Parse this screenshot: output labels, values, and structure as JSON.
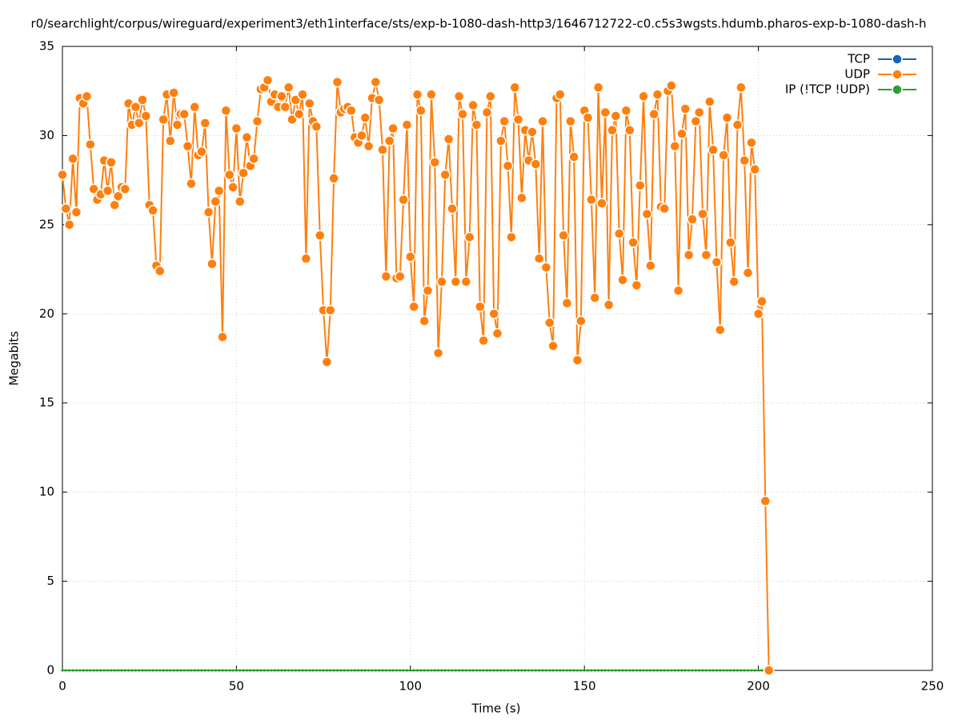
{
  "chart_data": {
    "type": "line",
    "title": "r0/searchlight/corpus/wireguard/experiment3/eth1interface/sts/exp-b-1080-dash-http3/1646712722-c0.c5s3wgsts.hdumb.pharos-exp-b-1080-dash-h",
    "x_label": "Time (s)",
    "y_label": "Megabits",
    "xlim": [
      0,
      250
    ],
    "xticks": [
      0,
      50,
      100,
      150,
      200,
      250
    ],
    "ylim": [
      0,
      35
    ],
    "yticks": [
      0,
      5,
      10,
      15,
      20,
      25,
      30,
      35
    ],
    "grid": true,
    "legend": "top-right",
    "x": [
      0,
      1,
      2,
      3,
      4,
      5,
      6,
      7,
      8,
      9,
      10,
      11,
      12,
      13,
      14,
      15,
      16,
      17,
      18,
      19,
      20,
      21,
      22,
      23,
      24,
      25,
      26,
      27,
      28,
      29,
      30,
      31,
      32,
      33,
      34,
      35,
      36,
      37,
      38,
      39,
      40,
      41,
      42,
      43,
      44,
      45,
      46,
      47,
      48,
      49,
      50,
      51,
      52,
      53,
      54,
      55,
      56,
      57,
      58,
      59,
      60,
      61,
      62,
      63,
      64,
      65,
      66,
      67,
      68,
      69,
      70,
      71,
      72,
      73,
      74,
      75,
      76,
      77,
      78,
      79,
      80,
      81,
      82,
      83,
      84,
      85,
      86,
      87,
      88,
      89,
      90,
      91,
      92,
      93,
      94,
      95,
      96,
      97,
      98,
      99,
      100,
      101,
      102,
      103,
      104,
      105,
      106,
      107,
      108,
      109,
      110,
      111,
      112,
      113,
      114,
      115,
      116,
      117,
      118,
      119,
      120,
      121,
      122,
      123,
      124,
      125,
      126,
      127,
      128,
      129,
      130,
      131,
      132,
      133,
      134,
      135,
      136,
      137,
      138,
      139,
      140,
      141,
      142,
      143,
      144,
      145,
      146,
      147,
      148,
      149,
      150,
      151,
      152,
      153,
      154,
      155,
      156,
      157,
      158,
      159,
      160,
      161,
      162,
      163,
      164,
      165,
      166,
      167,
      168,
      169,
      170,
      171,
      172,
      173,
      174,
      175,
      176,
      177,
      178,
      179,
      180,
      181,
      182,
      183,
      184,
      185,
      186,
      187,
      188,
      189,
      190,
      191,
      192,
      193,
      194,
      195,
      196,
      197,
      198,
      199,
      200,
      201,
      202,
      203
    ],
    "series": [
      {
        "name": "TCP",
        "color": "#1565b8",
        "values": [
          0,
          0,
          0,
          0,
          0,
          0,
          0,
          0,
          0,
          0,
          0,
          0,
          0,
          0,
          0,
          0,
          0,
          0,
          0,
          0,
          0,
          0,
          0,
          0,
          0,
          0,
          0,
          0,
          0,
          0,
          0,
          0,
          0,
          0,
          0,
          0,
          0,
          0,
          0,
          0,
          0,
          0,
          0,
          0,
          0,
          0,
          0,
          0,
          0,
          0,
          0,
          0,
          0,
          0,
          0,
          0,
          0,
          0,
          0,
          0,
          0,
          0,
          0,
          0,
          0,
          0,
          0,
          0,
          0,
          0,
          0,
          0,
          0,
          0,
          0,
          0,
          0,
          0,
          0,
          0,
          0,
          0,
          0,
          0,
          0,
          0,
          0,
          0,
          0,
          0,
          0,
          0,
          0,
          0,
          0,
          0,
          0,
          0,
          0,
          0,
          0,
          0,
          0,
          0,
          0,
          0,
          0,
          0,
          0,
          0,
          0,
          0,
          0,
          0,
          0,
          0,
          0,
          0,
          0,
          0,
          0,
          0,
          0,
          0,
          0,
          0,
          0,
          0,
          0,
          0,
          0,
          0,
          0,
          0,
          0,
          0,
          0,
          0,
          0,
          0,
          0,
          0,
          0,
          0,
          0,
          0,
          0,
          0,
          0,
          0,
          0,
          0,
          0,
          0,
          0,
          0,
          0,
          0,
          0,
          0,
          0,
          0,
          0,
          0,
          0,
          0,
          0,
          0,
          0,
          0,
          0,
          0,
          0,
          0,
          0,
          0,
          0,
          0,
          0,
          0,
          0,
          0,
          0,
          0,
          0,
          0,
          0,
          0,
          0,
          0,
          0,
          0,
          0,
          0,
          0,
          0,
          0,
          0,
          0,
          0,
          0,
          0,
          0,
          0
        ]
      },
      {
        "name": "UDP",
        "color": "#ff7f0e",
        "values": [
          27.8,
          25.9,
          25.0,
          28.7,
          25.7,
          32.1,
          31.8,
          32.2,
          29.5,
          27.0,
          26.4,
          26.7,
          28.6,
          26.9,
          28.5,
          26.1,
          26.6,
          27.1,
          27.0,
          31.8,
          30.6,
          31.6,
          30.7,
          32.0,
          31.1,
          26.1,
          25.8,
          22.7,
          22.4,
          30.9,
          32.3,
          29.7,
          32.4,
          30.6,
          31.2,
          31.2,
          29.4,
          27.3,
          31.6,
          28.9,
          29.1,
          30.7,
          25.7,
          22.8,
          26.3,
          26.9,
          18.7,
          31.4,
          27.8,
          27.1,
          30.4,
          26.3,
          27.9,
          29.9,
          28.3,
          28.7,
          30.8,
          32.6,
          32.7,
          33.1,
          31.9,
          32.3,
          31.6,
          32.2,
          31.6,
          32.7,
          30.9,
          32.0,
          31.2,
          32.3,
          23.1,
          31.8,
          30.8,
          30.5,
          24.4,
          20.2,
          17.3,
          20.2,
          27.6,
          33.0,
          31.3,
          31.5,
          31.6,
          31.4,
          29.9,
          29.6,
          30.0,
          31.0,
          29.4,
          32.1,
          33.0,
          32.0,
          29.2,
          22.1,
          29.7,
          30.4,
          22.0,
          22.1,
          26.4,
          30.6,
          23.2,
          20.4,
          32.3,
          31.4,
          19.6,
          21.3,
          32.3,
          28.5,
          17.8,
          21.8,
          27.8,
          29.8,
          25.9,
          21.8,
          32.2,
          31.2,
          21.8,
          24.3,
          31.7,
          30.6,
          20.4,
          18.5,
          31.3,
          32.2,
          20.0,
          18.9,
          29.7,
          30.8,
          28.3,
          24.3,
          32.7,
          30.9,
          26.5,
          30.3,
          28.6,
          30.2,
          28.4,
          23.1,
          30.8,
          22.6,
          19.5,
          18.2,
          32.1,
          32.3,
          24.4,
          20.6,
          30.8,
          28.8,
          17.4,
          19.6,
          31.4,
          31.0,
          26.4,
          20.9,
          32.7,
          26.2,
          31.3,
          20.5,
          30.3,
          31.1,
          24.5,
          21.9,
          31.4,
          30.3,
          24.0,
          21.6,
          27.2,
          32.2,
          25.6,
          22.7,
          31.2,
          32.3,
          26.0,
          25.9,
          32.5,
          32.8,
          29.4,
          21.3,
          30.1,
          31.5,
          23.3,
          25.3,
          30.8,
          31.3,
          25.6,
          23.3,
          31.9,
          29.2,
          22.9,
          19.1,
          28.9,
          31.0,
          24.0,
          21.8,
          30.6,
          32.7,
          28.6,
          22.3,
          29.6,
          28.1,
          20.0,
          20.7,
          9.5,
          0
        ]
      },
      {
        "name": "IP (!TCP  !UDP)",
        "color": "#2ca02c",
        "values": [
          0,
          0,
          0,
          0,
          0,
          0,
          0,
          0,
          0,
          0,
          0,
          0,
          0,
          0,
          0,
          0,
          0,
          0,
          0,
          0,
          0,
          0,
          0,
          0,
          0,
          0,
          0,
          0,
          0,
          0,
          0,
          0,
          0,
          0,
          0,
          0,
          0,
          0,
          0,
          0,
          0,
          0,
          0,
          0,
          0,
          0,
          0,
          0,
          0,
          0,
          0,
          0,
          0,
          0,
          0,
          0,
          0,
          0,
          0,
          0,
          0,
          0,
          0,
          0,
          0,
          0,
          0,
          0,
          0,
          0,
          0,
          0,
          0,
          0,
          0,
          0,
          0,
          0,
          0,
          0,
          0,
          0,
          0,
          0,
          0,
          0,
          0,
          0,
          0,
          0,
          0,
          0,
          0,
          0,
          0,
          0,
          0,
          0,
          0,
          0,
          0,
          0,
          0,
          0,
          0,
          0,
          0,
          0,
          0,
          0,
          0,
          0,
          0,
          0,
          0,
          0,
          0,
          0,
          0,
          0,
          0,
          0,
          0,
          0,
          0,
          0,
          0,
          0,
          0,
          0,
          0,
          0,
          0,
          0,
          0,
          0,
          0,
          0,
          0,
          0,
          0,
          0,
          0,
          0,
          0,
          0,
          0,
          0,
          0,
          0,
          0,
          0,
          0,
          0,
          0,
          0,
          0,
          0,
          0,
          0,
          0,
          0,
          0,
          0,
          0,
          0,
          0,
          0,
          0,
          0,
          0,
          0,
          0,
          0,
          0,
          0,
          0,
          0,
          0,
          0,
          0,
          0,
          0,
          0,
          0,
          0,
          0,
          0,
          0,
          0,
          0,
          0,
          0,
          0,
          0,
          0,
          0,
          0,
          0,
          0,
          0,
          0,
          0,
          0
        ]
      }
    ]
  }
}
